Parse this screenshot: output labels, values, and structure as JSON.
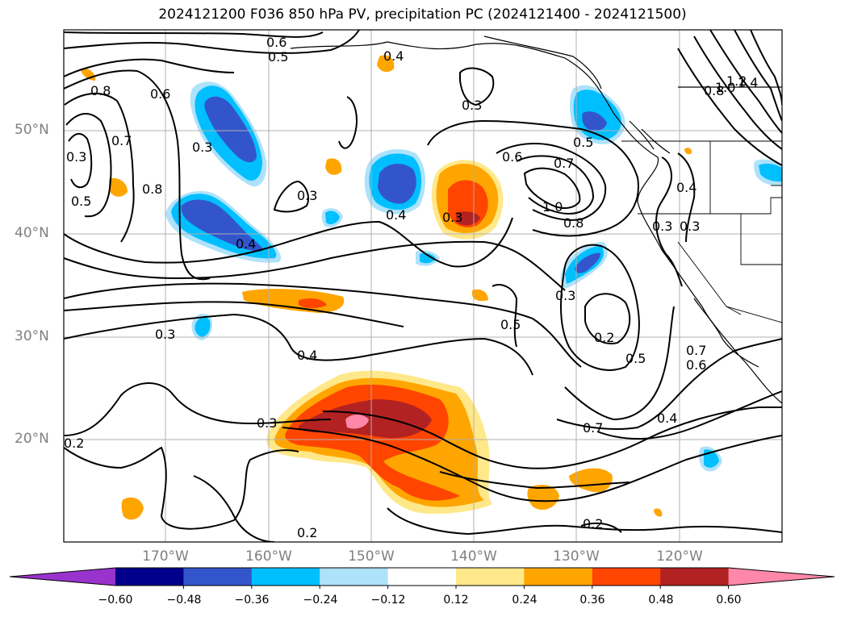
{
  "title": "2024121200 F036 850 hPa PV, precipitation PC (2024121400 - 2024121500)",
  "axes": {
    "lat_labels": [
      "50°N",
      "40°N",
      "30°N",
      "20°N"
    ],
    "lon_labels": [
      "170°W",
      "160°W",
      "150°W",
      "140°W",
      "130°W",
      "120°W"
    ]
  },
  "contour_labels": [
    "0.6",
    "0.5",
    "0.4",
    "0.3",
    "0.8",
    "0.6",
    "0.7",
    "0.5",
    "0.3",
    "0.3",
    "0.8",
    "0.3",
    "0.4",
    "0.4",
    "0.3",
    "0.6",
    "0.7",
    "1.0",
    "0.8",
    "0.5",
    "0.4",
    "0.3",
    "0.3",
    "0.3",
    "0.5",
    "0.2",
    "0.5",
    "0.7",
    "0.6",
    "0.3",
    "0.4",
    "0.3",
    "0.7",
    "0.4",
    "0.2",
    "0.2",
    "0.2",
    "0.8",
    "1.0",
    "1.2",
    "1.4"
  ],
  "colorbar": {
    "ticks": [
      "−0.60",
      "−0.48",
      "−0.36",
      "−0.24",
      "−0.12",
      "0.12",
      "0.24",
      "0.36",
      "0.48",
      "0.60"
    ],
    "colors": [
      "#9933cc",
      "#00008b",
      "#3355cc",
      "#00bfff",
      "#aee2fa",
      "#ffffff",
      "#ffe88a",
      "#ffa500",
      "#ff4500",
      "#b22222",
      "#ff88aa"
    ]
  }
}
